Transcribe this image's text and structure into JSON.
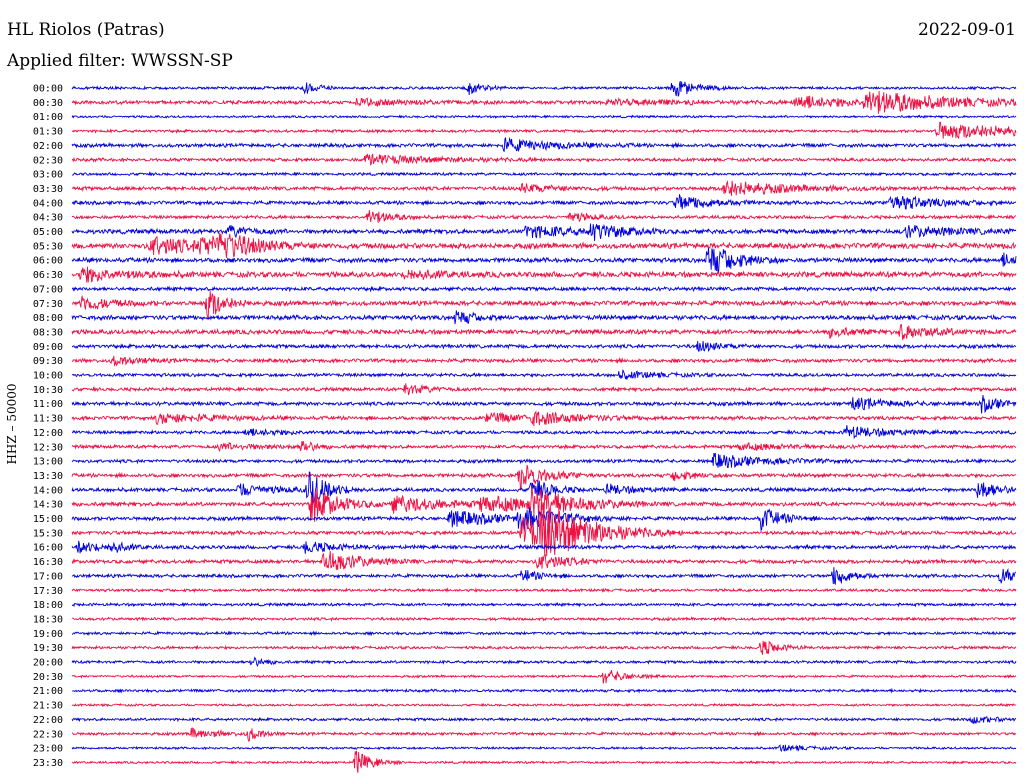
{
  "header": {
    "station": "HL Riolos (Patras)",
    "date": "2022-09-01",
    "filter": "Applied filter: WWSSN-SP"
  },
  "colors": {
    "odd": "#0000dd",
    "even": "#ee1144",
    "text": "#000000"
  },
  "chart_data": {
    "type": "line",
    "title": "HL Riolos (Patras)",
    "subtitle": "Applied filter: WWSSN-SP",
    "ylabel": "HHZ – 50000",
    "xlabel": "",
    "grid": false,
    "rows": [
      "00:00",
      "00:30",
      "01:00",
      "01:30",
      "02:00",
      "02:30",
      "03:00",
      "03:30",
      "04:00",
      "04:30",
      "05:00",
      "05:30",
      "06:00",
      "06:30",
      "07:00",
      "07:30",
      "08:00",
      "08:30",
      "09:00",
      "09:30",
      "10:00",
      "10:30",
      "11:00",
      "11:30",
      "12:00",
      "12:30",
      "13:00",
      "13:30",
      "14:00",
      "14:30",
      "15:00",
      "15:30",
      "16:00",
      "16:30",
      "17:00",
      "17:30",
      "18:00",
      "18:30",
      "19:00",
      "19:30",
      "20:00",
      "20:30",
      "21:00",
      "21:30",
      "22:00",
      "22:30",
      "23:00",
      "23:30"
    ],
    "row_duration_min": 30,
    "noise": [
      1.5,
      2,
      1.2,
      1.5,
      2,
      1.8,
      1.5,
      2,
      2,
      1.8,
      2.5,
      3,
      2.5,
      3,
      2,
      2.5,
      2.5,
      2.5,
      2,
      2,
      1.8,
      1.8,
      2,
      2,
      1.8,
      1.8,
      1.8,
      2,
      2,
      2.2,
      2,
      2,
      2,
      2,
      1.8,
      1.5,
      1.5,
      1.5,
      1.5,
      1.5,
      1.5,
      1.2,
      1.5,
      1.2,
      1.5,
      1.5,
      1.2,
      1.2
    ],
    "events": [
      {
        "row": 0,
        "minute": 7.4,
        "amplitude": 6,
        "duration_min": 0.4
      },
      {
        "row": 0,
        "minute": 12.6,
        "amplitude": 7,
        "duration_min": 0.4
      },
      {
        "row": 0,
        "minute": 19.1,
        "amplitude": 10,
        "duration_min": 0.6
      },
      {
        "row": 1,
        "minute": 9.0,
        "amplitude": 3,
        "duration_min": 1.5
      },
      {
        "row": 1,
        "minute": 17.0,
        "amplitude": 3,
        "duration_min": 2.0
      },
      {
        "row": 1,
        "minute": 23.0,
        "amplitude": 7,
        "duration_min": 1.5
      },
      {
        "row": 1,
        "minute": 25.2,
        "amplitude": 11,
        "duration_min": 2.5
      },
      {
        "row": 3,
        "minute": 27.5,
        "amplitude": 8,
        "duration_min": 3.0
      },
      {
        "row": 4,
        "minute": 13.7,
        "amplitude": 6,
        "duration_min": 1.5
      },
      {
        "row": 5,
        "minute": 9.3,
        "amplitude": 5,
        "duration_min": 2.0
      },
      {
        "row": 7,
        "minute": 14.3,
        "amplitude": 4,
        "duration_min": 1.0
      },
      {
        "row": 7,
        "minute": 20.7,
        "amplitude": 8,
        "duration_min": 1.8
      },
      {
        "row": 8,
        "minute": 19.2,
        "amplitude": 8,
        "duration_min": 1.0
      },
      {
        "row": 8,
        "minute": 26.0,
        "amplitude": 8,
        "duration_min": 1.2
      },
      {
        "row": 9,
        "minute": 9.4,
        "amplitude": 8,
        "duration_min": 0.6
      },
      {
        "row": 9,
        "minute": 15.8,
        "amplitude": 5,
        "duration_min": 0.6
      },
      {
        "row": 10,
        "minute": 5.0,
        "amplitude": 5,
        "duration_min": 0.6
      },
      {
        "row": 10,
        "minute": 14.4,
        "amplitude": 6,
        "duration_min": 1.5
      },
      {
        "row": 10,
        "minute": 16.5,
        "amplitude": 8,
        "duration_min": 0.8
      },
      {
        "row": 10,
        "minute": 26.5,
        "amplitude": 5,
        "duration_min": 1.5
      },
      {
        "row": 11,
        "minute": 2.5,
        "amplitude": 10,
        "duration_min": 1.2
      },
      {
        "row": 11,
        "minute": 4.1,
        "amplitude": 8,
        "duration_min": 1.0
      },
      {
        "row": 11,
        "minute": 4.7,
        "amplitude": 9,
        "duration_min": 1.2
      },
      {
        "row": 12,
        "minute": 20.2,
        "amplitude": 18,
        "duration_min": 0.8
      },
      {
        "row": 12,
        "minute": 29.6,
        "amplitude": 6,
        "duration_min": 0.5
      },
      {
        "row": 13,
        "minute": 0.3,
        "amplitude": 7,
        "duration_min": 1.2
      },
      {
        "row": 13,
        "minute": 10.6,
        "amplitude": 5,
        "duration_min": 1.0
      },
      {
        "row": 15,
        "minute": 0.3,
        "amplitude": 7,
        "duration_min": 0.8
      },
      {
        "row": 15,
        "minute": 4.3,
        "amplitude": 16,
        "duration_min": 0.5
      },
      {
        "row": 16,
        "minute": 12.2,
        "amplitude": 8,
        "duration_min": 0.5
      },
      {
        "row": 17,
        "minute": 24.1,
        "amplitude": 5,
        "duration_min": 0.6
      },
      {
        "row": 17,
        "minute": 26.3,
        "amplitude": 7,
        "duration_min": 1.0
      },
      {
        "row": 18,
        "minute": 19.9,
        "amplitude": 5,
        "duration_min": 0.6
      },
      {
        "row": 19,
        "minute": 1.3,
        "amplitude": 4,
        "duration_min": 0.8
      },
      {
        "row": 20,
        "minute": 17.4,
        "amplitude": 4,
        "duration_min": 1.0
      },
      {
        "row": 21,
        "minute": 10.6,
        "amplitude": 6,
        "duration_min": 0.6
      },
      {
        "row": 22,
        "minute": 24.8,
        "amplitude": 6,
        "duration_min": 1.0
      },
      {
        "row": 22,
        "minute": 28.9,
        "amplitude": 8,
        "duration_min": 0.6
      },
      {
        "row": 23,
        "minute": 2.7,
        "amplitude": 5,
        "duration_min": 1.5
      },
      {
        "row": 23,
        "minute": 13.2,
        "amplitude": 5,
        "duration_min": 1.0
      },
      {
        "row": 23,
        "minute": 14.6,
        "amplitude": 6,
        "duration_min": 1.5
      },
      {
        "row": 24,
        "minute": 5.5,
        "amplitude": 3,
        "duration_min": 1.2
      },
      {
        "row": 24,
        "minute": 24.6,
        "amplitude": 6,
        "duration_min": 1.2
      },
      {
        "row": 25,
        "minute": 4.7,
        "amplitude": 3,
        "duration_min": 1.5
      },
      {
        "row": 25,
        "minute": 7.3,
        "amplitude": 8,
        "duration_min": 0.3
      },
      {
        "row": 25,
        "minute": 21.2,
        "amplitude": 3,
        "duration_min": 1.5
      },
      {
        "row": 26,
        "minute": 20.4,
        "amplitude": 7,
        "duration_min": 1.5
      },
      {
        "row": 27,
        "minute": 14.2,
        "amplitude": 14,
        "duration_min": 0.8
      },
      {
        "row": 27,
        "minute": 19.1,
        "amplitude": 5,
        "duration_min": 0.6
      },
      {
        "row": 28,
        "minute": 5.3,
        "amplitude": 6,
        "duration_min": 1.0
      },
      {
        "row": 28,
        "minute": 7.5,
        "amplitude": 18,
        "duration_min": 0.6
      },
      {
        "row": 28,
        "minute": 14.6,
        "amplitude": 12,
        "duration_min": 0.6
      },
      {
        "row": 28,
        "minute": 17.0,
        "amplitude": 5,
        "duration_min": 0.8
      },
      {
        "row": 28,
        "minute": 28.8,
        "amplitude": 10,
        "duration_min": 0.6
      },
      {
        "row": 29,
        "minute": 7.6,
        "amplitude": 18,
        "duration_min": 0.8
      },
      {
        "row": 29,
        "minute": 10.2,
        "amplitude": 8,
        "duration_min": 1.5
      },
      {
        "row": 29,
        "minute": 13.0,
        "amplitude": 7,
        "duration_min": 2.0
      },
      {
        "row": 29,
        "minute": 14.6,
        "amplitude": 14,
        "duration_min": 1.2
      },
      {
        "row": 30,
        "minute": 12.0,
        "amplitude": 8,
        "duration_min": 1.5
      },
      {
        "row": 30,
        "minute": 14.2,
        "amplitude": 10,
        "duration_min": 1.2
      },
      {
        "row": 30,
        "minute": 21.9,
        "amplitude": 11,
        "duration_min": 0.6
      },
      {
        "row": 31,
        "minute": 14.3,
        "amplitude": 16,
        "duration_min": 1.5
      },
      {
        "row": 31,
        "minute": 14.9,
        "amplitude": 20,
        "duration_min": 1.5
      },
      {
        "row": 32,
        "minute": 0.2,
        "amplitude": 6,
        "duration_min": 0.6
      },
      {
        "row": 32,
        "minute": 1.2,
        "amplitude": 5,
        "duration_min": 0.5
      },
      {
        "row": 32,
        "minute": 7.4,
        "amplitude": 6,
        "duration_min": 0.8
      },
      {
        "row": 33,
        "minute": 8.0,
        "amplitude": 12,
        "duration_min": 1.0
      },
      {
        "row": 33,
        "minute": 14.8,
        "amplitude": 9,
        "duration_min": 0.8
      },
      {
        "row": 34,
        "minute": 14.3,
        "amplitude": 6,
        "duration_min": 0.5
      },
      {
        "row": 34,
        "minute": 24.2,
        "amplitude": 10,
        "duration_min": 0.5
      },
      {
        "row": 34,
        "minute": 29.5,
        "amplitude": 8,
        "duration_min": 0.5
      },
      {
        "row": 39,
        "minute": 21.9,
        "amplitude": 8,
        "duration_min": 0.5
      },
      {
        "row": 40,
        "minute": 5.7,
        "amplitude": 5,
        "duration_min": 0.4
      },
      {
        "row": 41,
        "minute": 16.9,
        "amplitude": 8,
        "duration_min": 0.6
      },
      {
        "row": 44,
        "minute": 28.6,
        "amplitude": 4,
        "duration_min": 0.6
      },
      {
        "row": 45,
        "minute": 3.8,
        "amplitude": 5,
        "duration_min": 0.8
      },
      {
        "row": 45,
        "minute": 5.6,
        "amplitude": 6,
        "duration_min": 0.4
      },
      {
        "row": 46,
        "minute": 22.5,
        "amplitude": 3,
        "duration_min": 0.8
      },
      {
        "row": 47,
        "minute": 9.0,
        "amplitude": 12,
        "duration_min": 0.5
      }
    ]
  }
}
